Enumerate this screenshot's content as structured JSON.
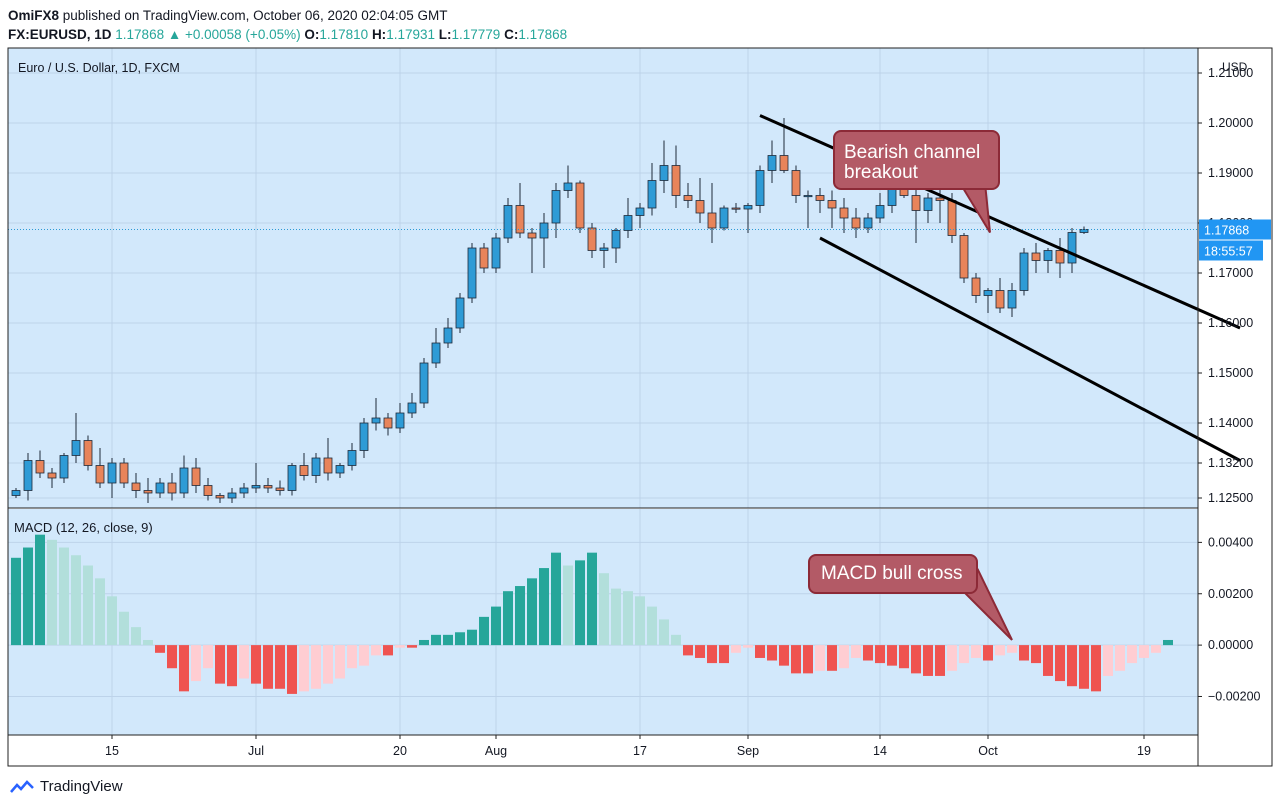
{
  "header": {
    "user": "OmiFX8",
    "published": "published on TradingView.com, October 06, 2020 02:04:05 GMT",
    "symbol": "FX:EURUSD, 1D",
    "last": "1.17868",
    "change_arrow": "▲",
    "change": "+0.00058 (+0.05%)",
    "o_label": "O:",
    "o": "1.17810",
    "h_label": "H:",
    "h": "1.17931",
    "l_label": "L:",
    "l": "1.17779",
    "c_label": "C:",
    "c": "1.17868"
  },
  "footer": {
    "brand": "TradingView",
    "logo_icon": "tradingview-logo-icon"
  },
  "colors": {
    "up": "#2e9bd6",
    "down": "#e8845a",
    "bg": "#d2e8fb",
    "border": "#222222",
    "hist_dark_green": "#26a69a",
    "hist_light_green": "#b2dfdb",
    "hist_dark_red": "#ef5350",
    "hist_light_red": "#ffcdd2",
    "callout_fill": "#b35a66",
    "callout_stroke": "#8c2a37"
  },
  "chart_data": {
    "type": "candlestick",
    "title": "Euro / U.S. Dollar, 1D, FXCM",
    "currency": "USD",
    "price_axis_ticks": [
      "1.21000",
      "1.20000",
      "1.19000",
      "1.18000",
      "1.17000",
      "1.16000",
      "1.15000",
      "1.14000",
      "1.13200",
      "1.12500"
    ],
    "price_ylim": [
      1.123,
      1.215
    ],
    "last_price_label": "1.17868",
    "countdown_label": "18:55:57",
    "x_tick_labels": [
      "15",
      "Jul",
      "20",
      "Aug",
      "17",
      "Sep",
      "14",
      "Oct",
      "19"
    ],
    "x_tick_index": [
      8,
      20,
      32,
      40,
      52,
      61,
      72,
      81,
      94
    ],
    "candles": [
      [
        1.1255,
        1.127,
        1.125,
        1.1265
      ],
      [
        1.1265,
        1.134,
        1.1245,
        1.1325
      ],
      [
        1.1325,
        1.1345,
        1.129,
        1.13
      ],
      [
        1.13,
        1.131,
        1.127,
        1.129
      ],
      [
        1.129,
        1.134,
        1.128,
        1.1335
      ],
      [
        1.1335,
        1.142,
        1.132,
        1.1365
      ],
      [
        1.1365,
        1.1375,
        1.1305,
        1.1315
      ],
      [
        1.1315,
        1.135,
        1.127,
        1.128
      ],
      [
        1.128,
        1.133,
        1.125,
        1.132
      ],
      [
        1.132,
        1.133,
        1.127,
        1.128
      ],
      [
        1.128,
        1.13,
        1.125,
        1.1265
      ],
      [
        1.1265,
        1.129,
        1.124,
        1.126
      ],
      [
        1.126,
        1.129,
        1.125,
        1.128
      ],
      [
        1.128,
        1.13,
        1.1245,
        1.126
      ],
      [
        1.126,
        1.1335,
        1.125,
        1.131
      ],
      [
        1.131,
        1.133,
        1.126,
        1.1275
      ],
      [
        1.1275,
        1.129,
        1.1245,
        1.1255
      ],
      [
        1.1255,
        1.126,
        1.124,
        1.125
      ],
      [
        1.125,
        1.127,
        1.124,
        1.126
      ],
      [
        1.126,
        1.128,
        1.125,
        1.127
      ],
      [
        1.127,
        1.132,
        1.126,
        1.1275
      ],
      [
        1.1275,
        1.129,
        1.126,
        1.127
      ],
      [
        1.127,
        1.1285,
        1.1255,
        1.1265
      ],
      [
        1.1265,
        1.132,
        1.1255,
        1.1315
      ],
      [
        1.1315,
        1.134,
        1.1285,
        1.1295
      ],
      [
        1.1295,
        1.134,
        1.128,
        1.133
      ],
      [
        1.133,
        1.137,
        1.1285,
        1.13
      ],
      [
        1.13,
        1.132,
        1.129,
        1.1315
      ],
      [
        1.1315,
        1.136,
        1.1305,
        1.1345
      ],
      [
        1.1345,
        1.141,
        1.133,
        1.14
      ],
      [
        1.14,
        1.145,
        1.1385,
        1.141
      ],
      [
        1.141,
        1.142,
        1.1375,
        1.139
      ],
      [
        1.139,
        1.144,
        1.138,
        1.142
      ],
      [
        1.142,
        1.146,
        1.141,
        1.144
      ],
      [
        1.144,
        1.153,
        1.143,
        1.152
      ],
      [
        1.152,
        1.159,
        1.151,
        1.156
      ],
      [
        1.156,
        1.161,
        1.155,
        1.159
      ],
      [
        1.159,
        1.166,
        1.158,
        1.165
      ],
      [
        1.165,
        1.176,
        1.164,
        1.175
      ],
      [
        1.175,
        1.176,
        1.17,
        1.171
      ],
      [
        1.171,
        1.178,
        1.17,
        1.177
      ],
      [
        1.177,
        1.185,
        1.176,
        1.1835
      ],
      [
        1.1835,
        1.188,
        1.177,
        1.178
      ],
      [
        1.178,
        1.179,
        1.17,
        1.177
      ],
      [
        1.177,
        1.182,
        1.171,
        1.18
      ],
      [
        1.18,
        1.188,
        1.177,
        1.1865
      ],
      [
        1.1865,
        1.1915,
        1.185,
        1.188
      ],
      [
        1.188,
        1.1885,
        1.178,
        1.179
      ],
      [
        1.179,
        1.18,
        1.173,
        1.1745
      ],
      [
        1.1745,
        1.176,
        1.171,
        1.175
      ],
      [
        1.175,
        1.179,
        1.172,
        1.1785
      ],
      [
        1.1785,
        1.185,
        1.177,
        1.1815
      ],
      [
        1.1815,
        1.184,
        1.179,
        1.183
      ],
      [
        1.183,
        1.192,
        1.1815,
        1.1885
      ],
      [
        1.1885,
        1.1965,
        1.186,
        1.1915
      ],
      [
        1.1915,
        1.1955,
        1.183,
        1.1855
      ],
      [
        1.1855,
        1.188,
        1.183,
        1.1845
      ],
      [
        1.1845,
        1.189,
        1.18,
        1.182
      ],
      [
        1.182,
        1.188,
        1.176,
        1.179
      ],
      [
        1.179,
        1.1835,
        1.1785,
        1.183
      ],
      [
        1.183,
        1.184,
        1.182,
        1.1828
      ],
      [
        1.1828,
        1.184,
        1.178,
        1.1835
      ],
      [
        1.1835,
        1.1915,
        1.182,
        1.1905
      ],
      [
        1.1905,
        1.1965,
        1.188,
        1.1935
      ],
      [
        1.1935,
        1.201,
        1.19,
        1.1905
      ],
      [
        1.1905,
        1.1915,
        1.184,
        1.1855
      ],
      [
        1.1855,
        1.1865,
        1.179,
        1.1855
      ],
      [
        1.1855,
        1.187,
        1.182,
        1.1845
      ],
      [
        1.1845,
        1.1865,
        1.179,
        1.183
      ],
      [
        1.183,
        1.185,
        1.178,
        1.181
      ],
      [
        1.181,
        1.183,
        1.177,
        1.179
      ],
      [
        1.179,
        1.182,
        1.178,
        1.181
      ],
      [
        1.181,
        1.186,
        1.18,
        1.1835
      ],
      [
        1.1835,
        1.188,
        1.182,
        1.187
      ],
      [
        1.187,
        1.188,
        1.185,
        1.1855
      ],
      [
        1.1855,
        1.188,
        1.176,
        1.1825
      ],
      [
        1.1825,
        1.186,
        1.18,
        1.185
      ],
      [
        1.185,
        1.188,
        1.18,
        1.1845
      ],
      [
        1.1845,
        1.186,
        1.176,
        1.1775
      ],
      [
        1.1775,
        1.178,
        1.168,
        1.169
      ],
      [
        1.169,
        1.17,
        1.164,
        1.1655
      ],
      [
        1.1655,
        1.167,
        1.162,
        1.1665
      ],
      [
        1.1665,
        1.169,
        1.162,
        1.163
      ],
      [
        1.163,
        1.168,
        1.1612,
        1.1665
      ],
      [
        1.1665,
        1.175,
        1.1655,
        1.174
      ],
      [
        1.174,
        1.176,
        1.17,
        1.1725
      ],
      [
        1.1725,
        1.175,
        1.17,
        1.1745
      ],
      [
        1.1745,
        1.177,
        1.169,
        1.172
      ],
      [
        1.172,
        1.179,
        1.17,
        1.1781
      ],
      [
        1.1781,
        1.1793,
        1.1778,
        1.1787
      ]
    ],
    "channel_upper": {
      "from": [
        1.2015,
        62
      ],
      "to": [
        1.159,
        102
      ]
    },
    "channel_lower": {
      "from": [
        1.177,
        67
      ],
      "to": [
        1.1325,
        102
      ]
    },
    "annotations": [
      {
        "text_lines": [
          "Bearish channel",
          "breakout"
        ]
      },
      {
        "text_lines": [
          "MACD bull cross"
        ]
      }
    ],
    "macd": {
      "title": "MACD (12, 26, close, 9)",
      "axis_ticks": [
        "0.00400",
        "0.00200",
        "0.00000",
        "−0.00200"
      ],
      "ylim": [
        -0.0035,
        0.0053
      ],
      "histogram": [
        0.0034,
        0.0038,
        0.0043,
        0.0041,
        0.0038,
        0.0035,
        0.0031,
        0.0026,
        0.0019,
        0.0013,
        0.0007,
        0.0002,
        -0.0003,
        -0.0009,
        -0.0018,
        -0.0014,
        -0.0009,
        -0.0015,
        -0.0016,
        -0.0013,
        -0.0015,
        -0.0017,
        -0.0017,
        -0.0019,
        -0.0018,
        -0.0017,
        -0.0015,
        -0.0013,
        -0.0009,
        -0.0008,
        -0.0004,
        -0.0004,
        -0.0001,
        -0.0001,
        0.0002,
        0.0004,
        0.0004,
        0.0005,
        0.0006,
        0.0011,
        0.0015,
        0.0021,
        0.0023,
        0.0026,
        0.003,
        0.0036,
        0.0031,
        0.0033,
        0.0036,
        0.0028,
        0.0022,
        0.0021,
        0.0019,
        0.0015,
        0.001,
        0.0004,
        -0.0004,
        -0.0005,
        -0.0007,
        -0.0007,
        -0.0003,
        -0.0001,
        -0.0005,
        -0.0006,
        -0.0008,
        -0.0011,
        -0.0011,
        -0.001,
        -0.001,
        -0.0009,
        -0.0005,
        -0.0006,
        -0.0007,
        -0.0008,
        -0.0009,
        -0.0011,
        -0.0012,
        -0.0012,
        -0.001,
        -0.0007,
        -0.0005,
        -0.0006,
        -0.0004,
        -0.0003,
        -0.0006,
        -0.0007,
        -0.0012,
        -0.0014,
        -0.0016,
        -0.0017,
        -0.0018,
        -0.0012,
        -0.001,
        -0.0007,
        -0.0005,
        -0.0003,
        0.0002
      ]
    },
    "grid": true
  }
}
